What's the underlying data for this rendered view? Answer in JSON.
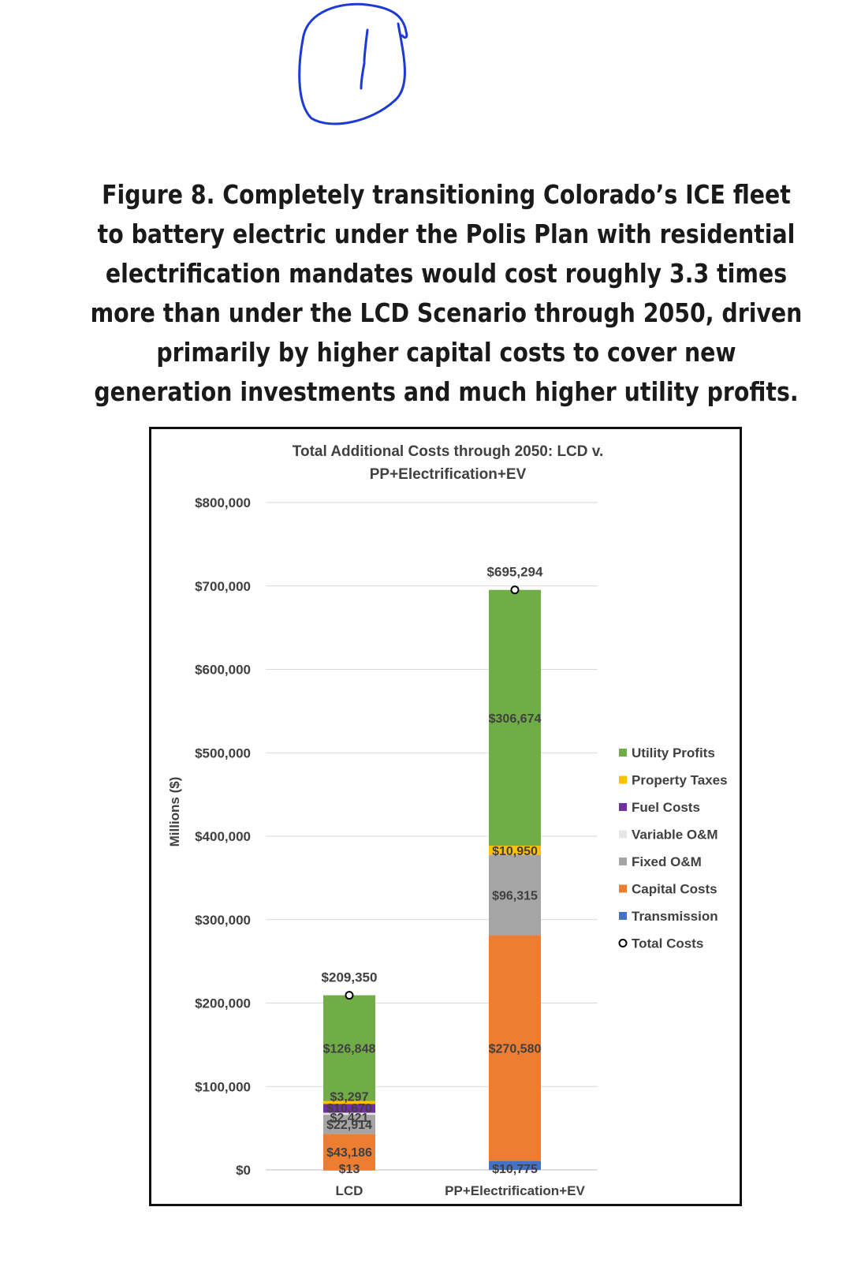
{
  "caption": "Figure 8. Completely transitioning Colorado’s ICE fleet to battery electric under the Polis Plan with residential electrification mandates would cost roughly 3.3 times more than under the LCD Scenario through 2050, driven primarily by higher capital costs to cover new generation investments and much higher utility profits.",
  "annotation_mark": "1",
  "chart_data": {
    "type": "bar",
    "stacked": true,
    "title": "Total Additional Costs through 2050: LCD v. PP+Electrification+EV",
    "title_lines": [
      "Total Additional Costs through 2050: LCD v.",
      "PP+Electrification+EV"
    ],
    "ylabel": "Millions ($)",
    "xlabel": "",
    "ylim": [
      0,
      800000
    ],
    "yticks": [
      0,
      100000,
      200000,
      300000,
      400000,
      500000,
      600000,
      700000,
      800000
    ],
    "ytick_labels": [
      "$0",
      "$100,000",
      "$200,000",
      "$300,000",
      "$400,000",
      "$500,000",
      "$600,000",
      "$700,000",
      "$800,000"
    ],
    "grid": true,
    "legend_position": "right",
    "categories": [
      "LCD",
      "PP+Electrification+EV"
    ],
    "series": [
      {
        "name": "Transmission",
        "color": "#4472C4",
        "values": [
          13,
          10775
        ],
        "labels": [
          "$13",
          "$10,775"
        ]
      },
      {
        "name": "Capital Costs",
        "color": "#ED7D31",
        "values": [
          43186,
          270580
        ],
        "labels": [
          "$43,186",
          "$270,580"
        ]
      },
      {
        "name": "Fixed O&M",
        "color": "#A5A5A5",
        "values": [
          22914,
          96315
        ],
        "labels": [
          "$22,914",
          "$96,315"
        ]
      },
      {
        "name": "Variable O&M",
        "color": "#E7E6E6",
        "values": [
          2421,
          0
        ],
        "labels": [
          "$2,421",
          ""
        ]
      },
      {
        "name": "Fuel Costs",
        "color": "#7030A0",
        "values": [
          10670,
          0
        ],
        "labels": [
          "$10,670",
          ""
        ]
      },
      {
        "name": "Property Taxes",
        "color": "#FFC000",
        "values": [
          3297,
          10950
        ],
        "labels": [
          "$3,297",
          "$10,950"
        ]
      },
      {
        "name": "Utility Profits",
        "color": "#70AD47",
        "values": [
          126848,
          306674
        ],
        "labels": [
          "$126,848",
          "$306,674"
        ]
      }
    ],
    "totals": {
      "name": "Total Costs",
      "values": [
        209350,
        695294
      ],
      "labels": [
        "$209,350",
        "$695,294"
      ]
    },
    "legend_order": [
      "Utility Profits",
      "Property Taxes",
      "Fuel Costs",
      "Variable O&M",
      "Fixed O&M",
      "Capital Costs",
      "Transmission",
      "Total Costs"
    ]
  }
}
